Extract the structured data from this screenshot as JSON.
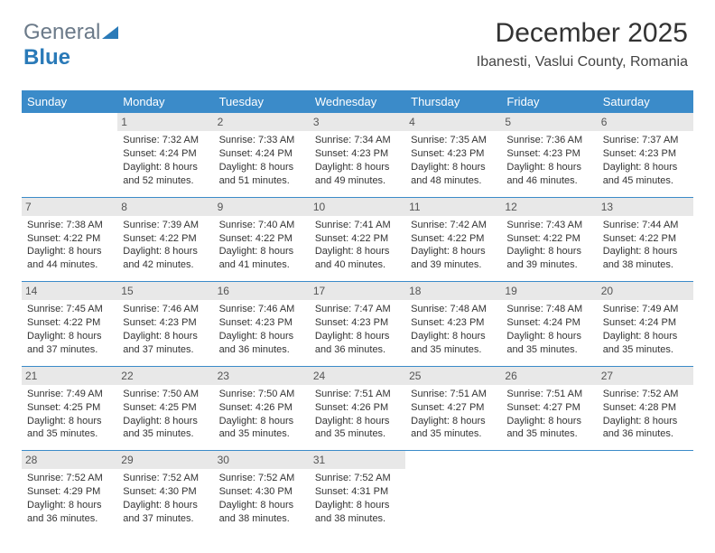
{
  "brand": {
    "text1": "General",
    "text2": "Blue"
  },
  "header": {
    "month": "December 2025",
    "location": "Ibanesti, Vaslui County, Romania"
  },
  "colors": {
    "headerBg": "#3b8bc9",
    "headerFg": "#ffffff",
    "dayBg": "#e8e8e8",
    "border": "#3b8bc9"
  },
  "dayNames": [
    "Sunday",
    "Monday",
    "Tuesday",
    "Wednesday",
    "Thursday",
    "Friday",
    "Saturday"
  ],
  "startOffset": 1,
  "days": [
    {
      "n": "1",
      "sr": "7:32 AM",
      "ss": "4:24 PM",
      "dl": "8 hours and 52 minutes."
    },
    {
      "n": "2",
      "sr": "7:33 AM",
      "ss": "4:24 PM",
      "dl": "8 hours and 51 minutes."
    },
    {
      "n": "3",
      "sr": "7:34 AM",
      "ss": "4:23 PM",
      "dl": "8 hours and 49 minutes."
    },
    {
      "n": "4",
      "sr": "7:35 AM",
      "ss": "4:23 PM",
      "dl": "8 hours and 48 minutes."
    },
    {
      "n": "5",
      "sr": "7:36 AM",
      "ss": "4:23 PM",
      "dl": "8 hours and 46 minutes."
    },
    {
      "n": "6",
      "sr": "7:37 AM",
      "ss": "4:23 PM",
      "dl": "8 hours and 45 minutes."
    },
    {
      "n": "7",
      "sr": "7:38 AM",
      "ss": "4:22 PM",
      "dl": "8 hours and 44 minutes."
    },
    {
      "n": "8",
      "sr": "7:39 AM",
      "ss": "4:22 PM",
      "dl": "8 hours and 42 minutes."
    },
    {
      "n": "9",
      "sr": "7:40 AM",
      "ss": "4:22 PM",
      "dl": "8 hours and 41 minutes."
    },
    {
      "n": "10",
      "sr": "7:41 AM",
      "ss": "4:22 PM",
      "dl": "8 hours and 40 minutes."
    },
    {
      "n": "11",
      "sr": "7:42 AM",
      "ss": "4:22 PM",
      "dl": "8 hours and 39 minutes."
    },
    {
      "n": "12",
      "sr": "7:43 AM",
      "ss": "4:22 PM",
      "dl": "8 hours and 39 minutes."
    },
    {
      "n": "13",
      "sr": "7:44 AM",
      "ss": "4:22 PM",
      "dl": "8 hours and 38 minutes."
    },
    {
      "n": "14",
      "sr": "7:45 AM",
      "ss": "4:22 PM",
      "dl": "8 hours and 37 minutes."
    },
    {
      "n": "15",
      "sr": "7:46 AM",
      "ss": "4:23 PM",
      "dl": "8 hours and 37 minutes."
    },
    {
      "n": "16",
      "sr": "7:46 AM",
      "ss": "4:23 PM",
      "dl": "8 hours and 36 minutes."
    },
    {
      "n": "17",
      "sr": "7:47 AM",
      "ss": "4:23 PM",
      "dl": "8 hours and 36 minutes."
    },
    {
      "n": "18",
      "sr": "7:48 AM",
      "ss": "4:23 PM",
      "dl": "8 hours and 35 minutes."
    },
    {
      "n": "19",
      "sr": "7:48 AM",
      "ss": "4:24 PM",
      "dl": "8 hours and 35 minutes."
    },
    {
      "n": "20",
      "sr": "7:49 AM",
      "ss": "4:24 PM",
      "dl": "8 hours and 35 minutes."
    },
    {
      "n": "21",
      "sr": "7:49 AM",
      "ss": "4:25 PM",
      "dl": "8 hours and 35 minutes."
    },
    {
      "n": "22",
      "sr": "7:50 AM",
      "ss": "4:25 PM",
      "dl": "8 hours and 35 minutes."
    },
    {
      "n": "23",
      "sr": "7:50 AM",
      "ss": "4:26 PM",
      "dl": "8 hours and 35 minutes."
    },
    {
      "n": "24",
      "sr": "7:51 AM",
      "ss": "4:26 PM",
      "dl": "8 hours and 35 minutes."
    },
    {
      "n": "25",
      "sr": "7:51 AM",
      "ss": "4:27 PM",
      "dl": "8 hours and 35 minutes."
    },
    {
      "n": "26",
      "sr": "7:51 AM",
      "ss": "4:27 PM",
      "dl": "8 hours and 35 minutes."
    },
    {
      "n": "27",
      "sr": "7:52 AM",
      "ss": "4:28 PM",
      "dl": "8 hours and 36 minutes."
    },
    {
      "n": "28",
      "sr": "7:52 AM",
      "ss": "4:29 PM",
      "dl": "8 hours and 36 minutes."
    },
    {
      "n": "29",
      "sr": "7:52 AM",
      "ss": "4:30 PM",
      "dl": "8 hours and 37 minutes."
    },
    {
      "n": "30",
      "sr": "7:52 AM",
      "ss": "4:30 PM",
      "dl": "8 hours and 38 minutes."
    },
    {
      "n": "31",
      "sr": "7:52 AM",
      "ss": "4:31 PM",
      "dl": "8 hours and 38 minutes."
    }
  ],
  "labels": {
    "sunrise": "Sunrise: ",
    "sunset": "Sunset: ",
    "daylight": "Daylight: "
  }
}
